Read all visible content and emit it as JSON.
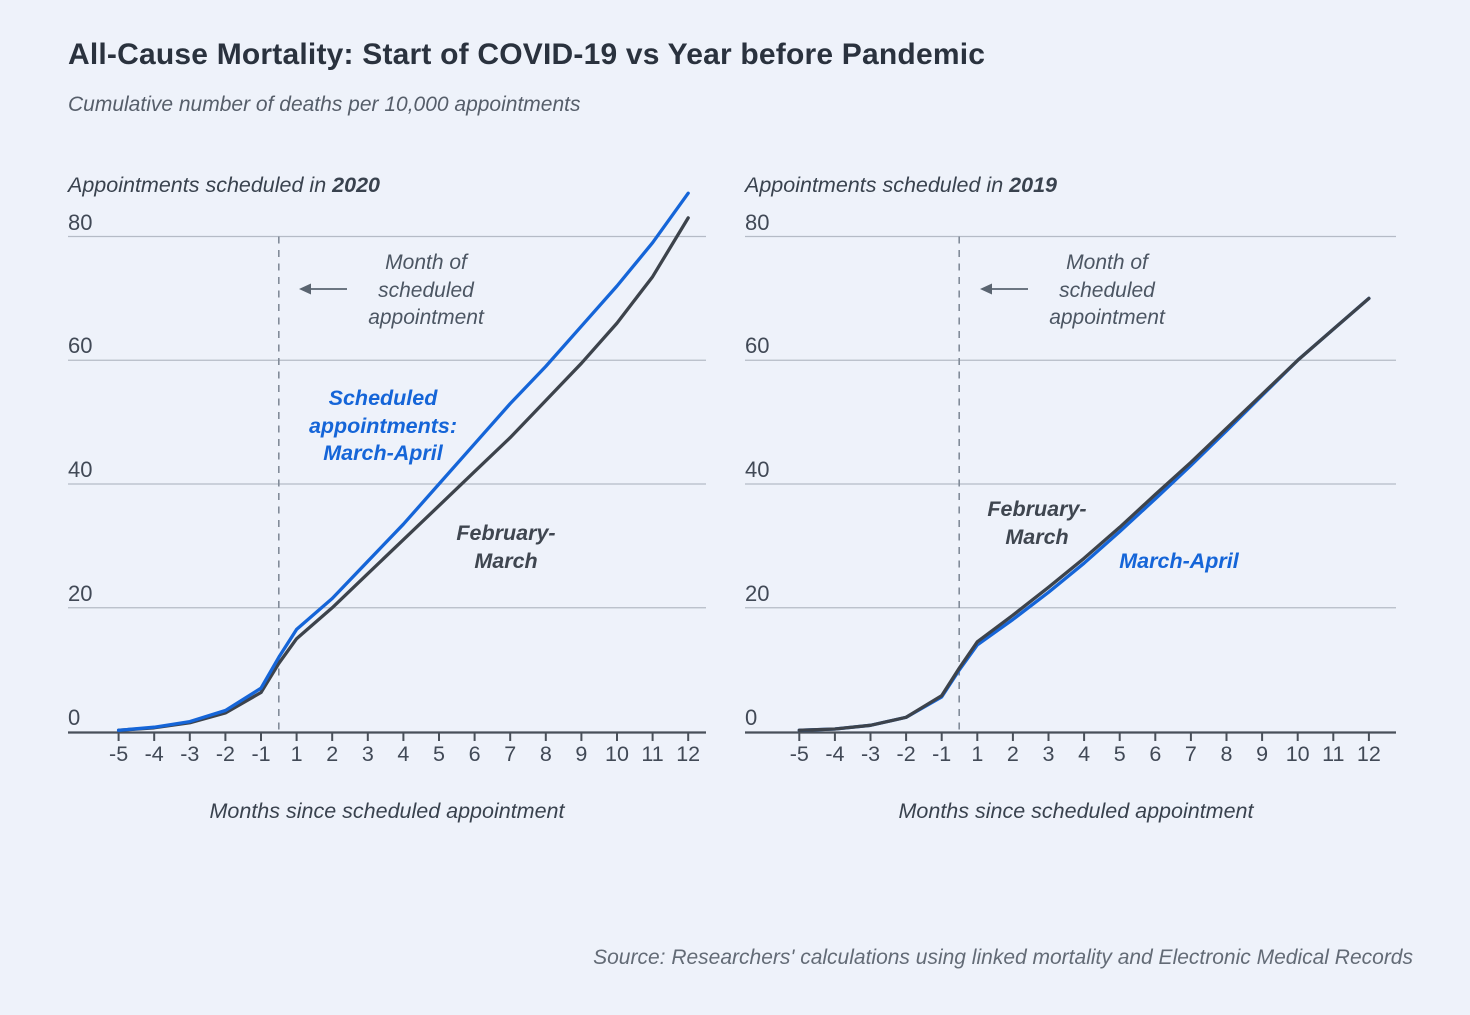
{
  "page": {
    "background": "#eef2fa"
  },
  "header": {
    "title": "All-Cause Mortality: Start of COVID-19 vs Year before Pandemic",
    "subtitle": "Cumulative number of deaths per 10,000 appointments"
  },
  "source_note": "Source: Researchers' calculations using linked mortality and Electronic Medical Records",
  "colors": {
    "blue": "#1565d8",
    "dark": "#3d434b",
    "grid": "#b5bbc6",
    "axis": "#49505a",
    "dashed": "#828c99",
    "arrow": "#5a6470"
  },
  "chart_data": [
    {
      "type": "line",
      "panel_title_prefix": "Appointments scheduled in ",
      "panel_title_year": "2020",
      "xlabel": "Months since scheduled appointment",
      "ylabel": "Cumulative deaths per 10,000 appointments",
      "x": [
        -5,
        -4,
        -3,
        -2,
        -1,
        0,
        1,
        2,
        3,
        4,
        5,
        6,
        7,
        8,
        9,
        10,
        11,
        12
      ],
      "x_tick_labels": [
        "-5",
        "-4",
        "-3",
        "-2",
        "-1",
        "1",
        "2",
        "3",
        "4",
        "5",
        "6",
        "7",
        "8",
        "9",
        "10",
        "11",
        "12"
      ],
      "y_ticks": [
        0,
        20,
        40,
        60,
        80
      ],
      "ylim": [
        0,
        90
      ],
      "grid": true,
      "legend_position": "inline-labels",
      "series": [
        {
          "name": "February-March",
          "color": "dark",
          "values": [
            0.2,
            0.6,
            1.4,
            3,
            6.3,
            11,
            15,
            20,
            25.5,
            31,
            36.5,
            42,
            47.5,
            53.5,
            59.5,
            66,
            73.5,
            83
          ]
        },
        {
          "name": "Scheduled appointments: March-April",
          "color": "blue",
          "values": [
            0.2,
            0.7,
            1.6,
            3.4,
            7,
            12,
            16.5,
            21.5,
            27.5,
            33.5,
            40,
            46.5,
            53,
            59,
            65.5,
            72,
            79,
            87
          ]
        }
      ],
      "annotations": {
        "month_marker": "Month of\nscheduled\nappointment",
        "blue_label": "Scheduled\nappointments:\nMarch-April",
        "dark_label": "February-\nMarch"
      }
    },
    {
      "type": "line",
      "panel_title_prefix": "Appointments scheduled in ",
      "panel_title_year": "2019",
      "xlabel": "Months since scheduled appointment",
      "ylabel": "Cumulative deaths per 10,000 appointments",
      "x": [
        -5,
        -4,
        -3,
        -2,
        -1,
        0,
        1,
        2,
        3,
        4,
        5,
        6,
        7,
        8,
        9,
        10,
        11,
        12
      ],
      "x_tick_labels": [
        "-5",
        "-4",
        "-3",
        "-2",
        "-1",
        "1",
        "2",
        "3",
        "4",
        "5",
        "6",
        "7",
        "8",
        "9",
        "10",
        "11",
        "12"
      ],
      "y_ticks": [
        0,
        20,
        40,
        60,
        80
      ],
      "ylim": [
        0,
        90
      ],
      "grid": true,
      "legend_position": "inline-labels",
      "series": [
        {
          "name": "March-April",
          "color": "blue",
          "values": [
            0.2,
            0.4,
            1,
            2.3,
            5.6,
            10,
            14,
            18.1,
            22.5,
            27.2,
            32.3,
            37.6,
            43,
            48.6,
            54.3,
            60,
            65,
            70
          ]
        },
        {
          "name": "February-March",
          "color": "dark",
          "values": [
            0.2,
            0.4,
            1,
            2.3,
            5.8,
            10.3,
            14.5,
            18.8,
            23.3,
            28,
            33,
            38.3,
            43.5,
            49,
            54.5,
            60,
            65,
            70
          ]
        }
      ],
      "annotations": {
        "month_marker": "Month of\nscheduled\nappointment",
        "dark_label": "February-\nMarch",
        "blue_label": "March-April"
      }
    }
  ]
}
